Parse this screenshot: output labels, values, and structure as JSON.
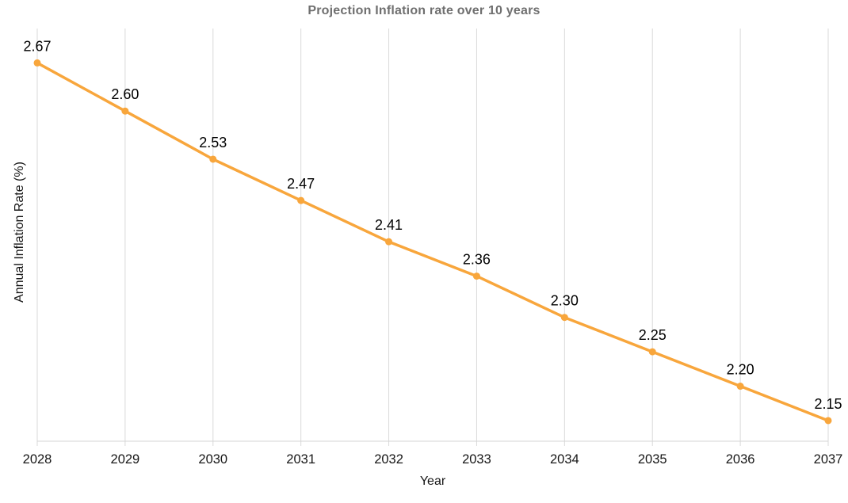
{
  "page": {
    "title": "Projection Inflation rate over 10 years",
    "x_axis_title": "Year",
    "y_axis_title": "Annual Inflation Rate (%)"
  },
  "chart_data": {
    "type": "line",
    "title": "Projection Inflation rate over 10 years",
    "xlabel": "Year",
    "ylabel": "Annual Inflation Rate (%)",
    "categories": [
      "2028",
      "2029",
      "2030",
      "2031",
      "2032",
      "2033",
      "2034",
      "2035",
      "2036",
      "2037"
    ],
    "values": [
      2.67,
      2.6,
      2.53,
      2.47,
      2.41,
      2.36,
      2.3,
      2.25,
      2.2,
      2.15
    ],
    "value_labels": [
      "2.67",
      "2.60",
      "2.53",
      "2.47",
      "2.41",
      "2.36",
      "2.30",
      "2.25",
      "2.20",
      "2.15"
    ],
    "ylim": [
      2.12,
      2.72
    ],
    "grid": "vertical-only",
    "legend": "none",
    "data_labels_shown": true,
    "line_color": "#F8A63C",
    "marker_color": "#F8A63C",
    "gridline_color": "#DADADA",
    "axis_line_color": "#D4D4D4",
    "tick_label_color": "#161616",
    "data_label_color": "#000000",
    "title_color": "#6F6F6F"
  }
}
